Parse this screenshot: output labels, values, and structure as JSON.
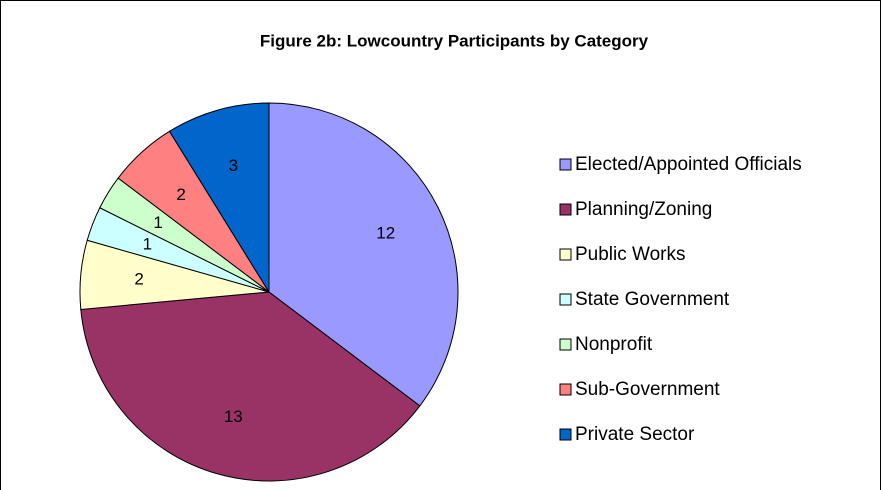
{
  "chart_data": {
    "type": "pie",
    "title": "Figure 2b: Lowcountry Participants by Category",
    "categories": [
      "Elected/Appointed Officials",
      "Planning/Zoning",
      "Public Works",
      "State Government",
      "Nonprofit",
      "Sub-Government",
      "Private Sector"
    ],
    "values": [
      12,
      13,
      2,
      1,
      1,
      2,
      3
    ],
    "colors": [
      "#9999ff",
      "#993366",
      "#ffffcc",
      "#ccffff",
      "#ccffcc",
      "#ff8080",
      "#0066cc"
    ],
    "legend": "right"
  }
}
